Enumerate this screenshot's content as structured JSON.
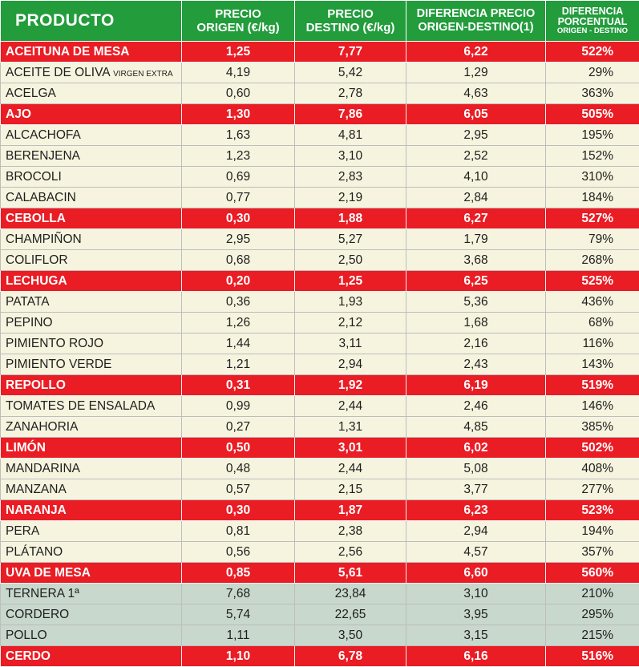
{
  "header": {
    "producto": "PRODUCTO",
    "origen_1": "PRECIO",
    "origen_2": "ORIGEN (€/kg)",
    "destino_1": "PRECIO",
    "destino_2": "DESTINO (€/kg)",
    "dif_1": "DIFERENCIA PRECIO",
    "dif_2": "ORIGEN-DESTINO(1)",
    "pct_1": "DIFERENCIA",
    "pct_2": "PORCENTUAL",
    "pct_3": "ORIGEN - DESTINO"
  },
  "colors": {
    "header_green": "#239c3c",
    "highlight_red": "#ea1c24",
    "row_cream": "#f6f4de",
    "row_meat": "#c8d8cc"
  },
  "rows": [
    {
      "name": "ACEITUNA DE MESA",
      "extra": "",
      "origen": "1,25",
      "destino": "7,77",
      "diferencia": "6,22",
      "porcentaje": "522%",
      "style": "hl"
    },
    {
      "name": "ACEITE DE OLIVA ",
      "extra": "VIRGEN EXTRA",
      "origen": "4,19",
      "destino": "5,42",
      "diferencia": "1,29",
      "porcentaje": "29%",
      "style": "normal"
    },
    {
      "name": "ACELGA",
      "extra": "",
      "origen": "0,60",
      "destino": "2,78",
      "diferencia": "4,63",
      "porcentaje": "363%",
      "style": "normal"
    },
    {
      "name": "AJO",
      "extra": "",
      "origen": "1,30",
      "destino": "7,86",
      "diferencia": "6,05",
      "porcentaje": "505%",
      "style": "hl"
    },
    {
      "name": "ALCACHOFA",
      "extra": "",
      "origen": "1,63",
      "destino": "4,81",
      "diferencia": "2,95",
      "porcentaje": "195%",
      "style": "normal"
    },
    {
      "name": "BERENJENA",
      "extra": "",
      "origen": "1,23",
      "destino": "3,10",
      "diferencia": "2,52",
      "porcentaje": "152%",
      "style": "normal"
    },
    {
      "name": "BROCOLI",
      "extra": "",
      "origen": "0,69",
      "destino": "2,83",
      "diferencia": "4,10",
      "porcentaje": "310%",
      "style": "normal"
    },
    {
      "name": "CALABACIN",
      "extra": "",
      "origen": "0,77",
      "destino": "2,19",
      "diferencia": "2,84",
      "porcentaje": "184%",
      "style": "normal"
    },
    {
      "name": "CEBOLLA",
      "extra": "",
      "origen": "0,30",
      "destino": "1,88",
      "diferencia": "6,27",
      "porcentaje": "527%",
      "style": "hl"
    },
    {
      "name": "CHAMPIÑON",
      "extra": "",
      "origen": "2,95",
      "destino": "5,27",
      "diferencia": "1,79",
      "porcentaje": "79%",
      "style": "normal"
    },
    {
      "name": "COLIFLOR",
      "extra": "",
      "origen": "0,68",
      "destino": "2,50",
      "diferencia": "3,68",
      "porcentaje": "268%",
      "style": "normal"
    },
    {
      "name": "LECHUGA",
      "extra": "",
      "origen": "0,20",
      "destino": "1,25",
      "diferencia": "6,25",
      "porcentaje": "525%",
      "style": "hl"
    },
    {
      "name": "PATATA",
      "extra": "",
      "origen": "0,36",
      "destino": "1,93",
      "diferencia": "5,36",
      "porcentaje": "436%",
      "style": "normal"
    },
    {
      "name": "PEPINO",
      "extra": "",
      "origen": "1,26",
      "destino": "2,12",
      "diferencia": "1,68",
      "porcentaje": "68%",
      "style": "normal"
    },
    {
      "name": "PIMIENTO ROJO",
      "extra": "",
      "origen": "1,44",
      "destino": "3,11",
      "diferencia": "2,16",
      "porcentaje": "116%",
      "style": "normal"
    },
    {
      "name": "PIMIENTO VERDE",
      "extra": "",
      "origen": "1,21",
      "destino": "2,94",
      "diferencia": "2,43",
      "porcentaje": "143%",
      "style": "normal"
    },
    {
      "name": "REPOLLO",
      "extra": "",
      "origen": "0,31",
      "destino": "1,92",
      "diferencia": "6,19",
      "porcentaje": "519%",
      "style": "hl"
    },
    {
      "name": "TOMATES DE ENSALADA",
      "extra": "",
      "origen": "0,99",
      "destino": "2,44",
      "diferencia": "2,46",
      "porcentaje": "146%",
      "style": "normal"
    },
    {
      "name": "ZANAHORIA",
      "extra": "",
      "origen": "0,27",
      "destino": "1,31",
      "diferencia": "4,85",
      "porcentaje": "385%",
      "style": "normal"
    },
    {
      "name": "LIMÓN",
      "extra": "",
      "origen": "0,50",
      "destino": "3,01",
      "diferencia": "6,02",
      "porcentaje": "502%",
      "style": "hl"
    },
    {
      "name": "MANDARINA",
      "extra": "",
      "origen": "0,48",
      "destino": "2,44",
      "diferencia": "5,08",
      "porcentaje": "408%",
      "style": "normal"
    },
    {
      "name": "MANZANA",
      "extra": "",
      "origen": "0,57",
      "destino": "2,15",
      "diferencia": "3,77",
      "porcentaje": "277%",
      "style": "normal"
    },
    {
      "name": "NARANJA",
      "extra": "",
      "origen": "0,30",
      "destino": "1,87",
      "diferencia": "6,23",
      "porcentaje": "523%",
      "style": "hl"
    },
    {
      "name": "PERA",
      "extra": "",
      "origen": "0,81",
      "destino": "2,38",
      "diferencia": "2,94",
      "porcentaje": "194%",
      "style": "normal"
    },
    {
      "name": "PLÁTANO",
      "extra": "",
      "origen": "0,56",
      "destino": "2,56",
      "diferencia": "4,57",
      "porcentaje": "357%",
      "style": "normal"
    },
    {
      "name": "UVA DE MESA",
      "extra": "",
      "origen": "0,85",
      "destino": "5,61",
      "diferencia": "6,60",
      "porcentaje": "560%",
      "style": "hl"
    },
    {
      "name": "TERNERA 1ª",
      "extra": "",
      "origen": "7,68",
      "destino": "23,84",
      "diferencia": "3,10",
      "porcentaje": "210%",
      "style": "meat"
    },
    {
      "name": "CORDERO",
      "extra": "",
      "origen": "5,74",
      "destino": "22,65",
      "diferencia": "3,95",
      "porcentaje": "295%",
      "style": "meat"
    },
    {
      "name": "POLLO",
      "extra": "",
      "origen": "1,11",
      "destino": "3,50",
      "diferencia": "3,15",
      "porcentaje": "215%",
      "style": "meat"
    },
    {
      "name": "CERDO",
      "extra": "",
      "origen": "1,10",
      "destino": "6,78",
      "diferencia": "6,16",
      "porcentaje": "516%",
      "style": "hl"
    }
  ]
}
